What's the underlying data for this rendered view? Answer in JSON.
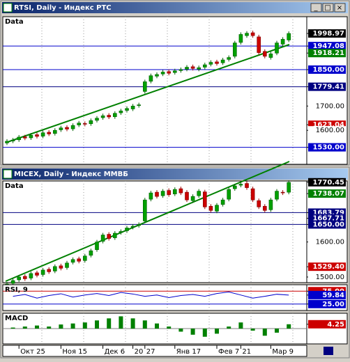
{
  "windows": [
    {
      "title": "RTSI, Daily - Индекс РТС",
      "panels": [
        {
          "label": "Data",
          "type": "candlestick",
          "ylim": [
            1460,
            2068
          ],
          "open": [
            1548,
            1556,
            1561,
            1573,
            1569,
            1582,
            1576,
            1592,
            1587,
            1602,
            1612,
            1606,
            1622,
            1628,
            1627,
            1641,
            1652,
            1662,
            1656,
            1672,
            1682,
            1688,
            1702,
            1760,
            1802,
            1823,
            1832,
            1842,
            1838,
            1846,
            1852,
            1862,
            1852,
            1860,
            1872,
            1882,
            1878,
            1892,
            1905,
            1962,
            1990,
            2002,
            1985,
            1925,
            1900,
            1918,
            1955,
            1972
          ],
          "close": [
            1555,
            1560,
            1572,
            1568,
            1580,
            1575,
            1590,
            1585,
            1600,
            1610,
            1605,
            1620,
            1630,
            1625,
            1640,
            1650,
            1660,
            1655,
            1670,
            1680,
            1690,
            1700,
            1705,
            1800,
            1825,
            1830,
            1840,
            1835,
            1845,
            1850,
            1860,
            1855,
            1858,
            1870,
            1880,
            1875,
            1890,
            1900,
            1960,
            1995,
            2000,
            1990,
            1920,
            1905,
            1915,
            1960,
            1975,
            1999
          ],
          "price_labels": [
            {
              "value": 1998.97,
              "color": "#000000",
              "line": false
            },
            {
              "value": 1947.08,
              "color": "#0000cc",
              "line": true
            },
            {
              "value": 1918.21,
              "color": "#008000",
              "line": false
            },
            {
              "value": 1850,
              "label": "1850.00",
              "color": "#0000cc",
              "line": true
            },
            {
              "value": 1779.41,
              "color": "#000080",
              "line": true
            },
            {
              "value": 1700,
              "label": "1700.00",
              "color": "#ffffff",
              "line": false
            },
            {
              "value": 1623.04,
              "color": "#cc0000",
              "line": false
            },
            {
              "value": 1600,
              "label": "1600.00",
              "color": "#ffffff",
              "line": false
            },
            {
              "value": 1530,
              "label": "1530.00",
              "color": "#0000cc",
              "line": true
            }
          ]
        }
      ]
    },
    {
      "title": "MICEX, Daily - Индекс ММВБ",
      "panels": [
        {
          "label": "Data",
          "type": "candlestick",
          "ylim": [
            1484,
            1774
          ],
          "open": [
            1475,
            1482,
            1492,
            1502,
            1497,
            1512,
            1507,
            1522,
            1517,
            1532,
            1527,
            1542,
            1552,
            1547,
            1562,
            1578,
            1602,
            1622,
            1612,
            1627,
            1632,
            1642,
            1647,
            1660,
            1722,
            1742,
            1732,
            1747,
            1737,
            1752,
            1742,
            1718,
            1732,
            1743,
            1702,
            1688,
            1707,
            1722,
            1752,
            1762,
            1767,
            1752,
            1718,
            1702,
            1692,
            1722,
            1742,
            1742
          ],
          "close": [
            1480,
            1490,
            1500,
            1495,
            1510,
            1505,
            1520,
            1515,
            1530,
            1525,
            1540,
            1550,
            1545,
            1560,
            1575,
            1600,
            1620,
            1610,
            1625,
            1630,
            1640,
            1645,
            1650,
            1720,
            1740,
            1730,
            1745,
            1735,
            1750,
            1740,
            1720,
            1730,
            1745,
            1700,
            1690,
            1705,
            1720,
            1750,
            1760,
            1765,
            1755,
            1720,
            1700,
            1690,
            1720,
            1745,
            1740,
            1770
          ],
          "price_labels": [
            {
              "value": 1770.45,
              "color": "#000000",
              "line": false
            },
            {
              "value": 1738.07,
              "color": "#008000",
              "line": false
            },
            {
              "value": 1683.79,
              "color": "#000080",
              "line": true
            },
            {
              "value": 1667.71,
              "color": "#000080",
              "line": false
            },
            {
              "value": 1650,
              "label": "1650.00",
              "color": "#000080",
              "line": true
            },
            {
              "value": 1600,
              "label": "1600.00",
              "color": "#ffffff",
              "line": false
            },
            {
              "value": 1529.4,
              "label": "1529.40",
              "color": "#cc0000",
              "line": false
            },
            {
              "value": 1500,
              "label": "1500.00",
              "color": "#ffffff",
              "line": false
            }
          ]
        },
        {
          "label": "RSI, 9",
          "type": "line",
          "ylim": [
            0,
            100
          ],
          "color": "#0000cc",
          "values": [
            55,
            62,
            48,
            58,
            65,
            52,
            60,
            66,
            58,
            70,
            64,
            55,
            60,
            50,
            58,
            62,
            55,
            66,
            72,
            60,
            48,
            55,
            63,
            59.84
          ],
          "price_labels": [
            {
              "value": 75,
              "label": "75.00",
              "color": "#cc0000",
              "line": true
            },
            {
              "value": 59.84,
              "color": "#0000cc",
              "line": false
            },
            {
              "value": 25,
              "label": "25.00",
              "color": "#0000cc",
              "line": true
            }
          ]
        },
        {
          "label": "MACD",
          "type": "histogram",
          "ylim": [
            -15,
            15
          ],
          "color": "#008000",
          "values": [
            1,
            2,
            3,
            2,
            4,
            5,
            6,
            8,
            10,
            12,
            10,
            8,
            5,
            2,
            -3,
            -6,
            -8,
            -5,
            2,
            6,
            -2,
            -7,
            -4,
            4.25
          ],
          "price_labels": [
            {
              "value": 4.25,
              "color": "#cc0000",
              "line": false
            }
          ]
        }
      ],
      "categories": [
        null,
        null,
        "Окт 25",
        null,
        null,
        null,
        null,
        null,
        null,
        "Ноя 15",
        null,
        null,
        null,
        null,
        null,
        null,
        "Дек 6",
        null,
        null,
        null,
        null,
        "20",
        null,
        "27",
        null,
        null,
        null,
        null,
        "Янв 17",
        null,
        null,
        null,
        null,
        null,
        null,
        "Фев 7",
        null,
        null,
        null,
        "21",
        null,
        null,
        null,
        null,
        "Мар 9",
        null,
        null,
        null
      ]
    }
  ]
}
